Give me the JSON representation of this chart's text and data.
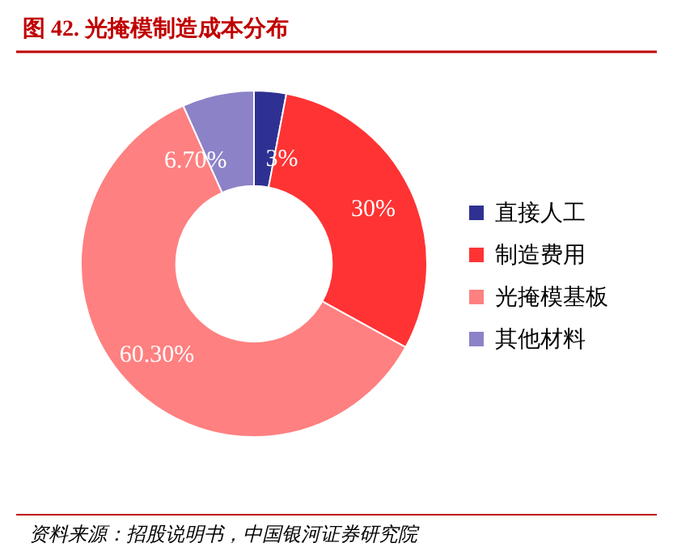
{
  "chart_data": {
    "type": "donut",
    "title": "图 42. 光掩模制造成本分布",
    "categories": [
      "直接人工",
      "制造费用",
      "光掩模基板",
      "其他材料"
    ],
    "values": [
      3,
      30,
      60.3,
      6.7
    ],
    "colors": [
      "#2e3192",
      "#ff3333",
      "#ff8080",
      "#8c82c8"
    ],
    "value_labels": [
      "3%",
      "30%",
      "60.30%",
      "6.70%"
    ],
    "legend": "right",
    "annotations": [
      "资料来源：招股说明书，中国银河证券研究院"
    ]
  }
}
